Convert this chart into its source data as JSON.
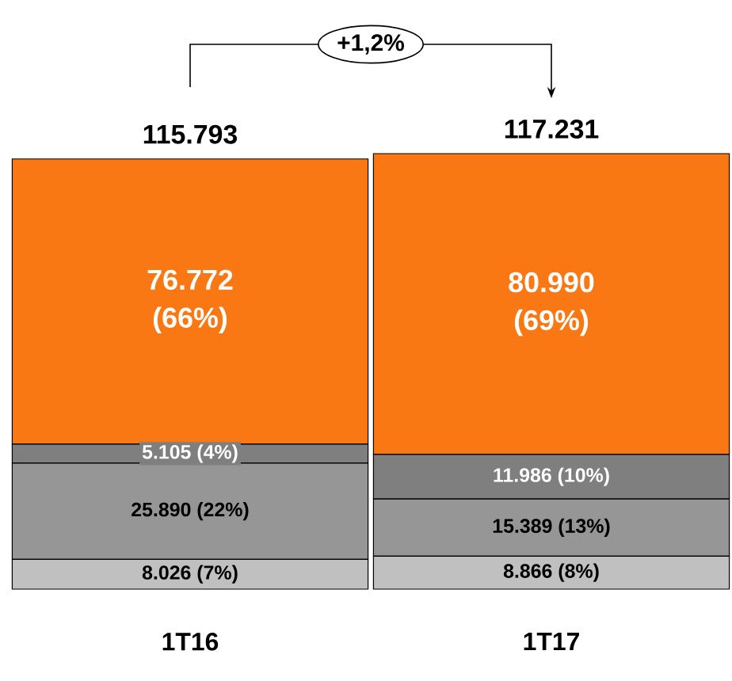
{
  "chart_data": {
    "type": "bar",
    "stacked": true,
    "categories": [
      "1T16",
      "1T17"
    ],
    "series": [
      {
        "color": "#c0c0c0",
        "values": [
          8026,
          8866
        ],
        "value_labels": [
          "8.026 (7%)",
          "8.866 (8%)"
        ]
      },
      {
        "color": "#969696",
        "values": [
          25890,
          15389
        ],
        "value_labels": [
          "25.890 (22%)",
          "15.389 (13%)"
        ]
      },
      {
        "color": "#7f7f7f",
        "values": [
          5105,
          11986
        ],
        "value_labels": [
          "5.105 (4%)",
          "11.986 (10%)"
        ]
      },
      {
        "color": "#fa7814",
        "values": [
          76772,
          80990
        ],
        "value_labels": [
          "76.772 (66%)",
          "80.990 (69%)"
        ]
      }
    ],
    "totals": [
      "115.793",
      "117.231"
    ],
    "annotations": [
      "+1,2%"
    ]
  }
}
